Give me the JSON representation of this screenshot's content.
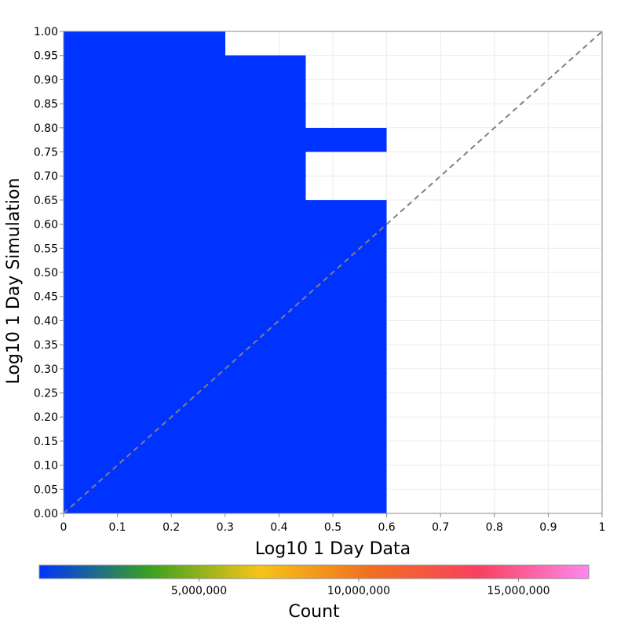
{
  "chart_data": {
    "type": "heatmap",
    "xlabel": "Log10 1 Day Data",
    "ylabel": "Log10 1 Day Simulation",
    "xlim": [
      0,
      1
    ],
    "ylim": [
      0,
      1
    ],
    "x_ticks": [
      "0",
      "0.1",
      "0.2",
      "0.3",
      "0.4",
      "0.5",
      "0.6",
      "0.7",
      "0.8",
      "0.9",
      "1"
    ],
    "x_tick_values": [
      0,
      0.1,
      0.2,
      0.3,
      0.4,
      0.5,
      0.6,
      0.7,
      0.8,
      0.9,
      1.0
    ],
    "y_ticks": [
      "0.00",
      "0.05",
      "0.10",
      "0.15",
      "0.20",
      "0.25",
      "0.30",
      "0.35",
      "0.40",
      "0.45",
      "0.50",
      "0.55",
      "0.60",
      "0.65",
      "0.70",
      "0.75",
      "0.80",
      "0.85",
      "0.90",
      "0.95",
      "1.00"
    ],
    "y_tick_values": [
      0,
      0.05,
      0.1,
      0.15,
      0.2,
      0.25,
      0.3,
      0.35,
      0.4,
      0.45,
      0.5,
      0.55,
      0.6,
      0.65,
      0.7,
      0.75,
      0.8,
      0.85,
      0.9,
      0.95,
      1.0
    ],
    "grid": true,
    "reference_line": "y = x (dashed)",
    "cells": [
      {
        "x0": 0.0,
        "x1": 0.3,
        "y0": 0.0,
        "y1": 1.0
      },
      {
        "x0": 0.3,
        "x1": 0.45,
        "y0": 0.0,
        "y1": 0.95
      },
      {
        "x0": 0.45,
        "x1": 0.6,
        "y0": 0.0,
        "y1": 0.65
      },
      {
        "x0": 0.45,
        "x1": 0.6,
        "y0": 0.75,
        "y1": 0.8
      }
    ],
    "cell_color": "#0033ff",
    "colorbar": {
      "label": "Count",
      "ticks": [
        "5,000,000",
        "10,000,000",
        "15,000,000"
      ],
      "tick_values": [
        5000000,
        10000000,
        15000000
      ],
      "range": [
        0,
        17200000
      ],
      "colors": [
        "#0033ff",
        "#3aa020",
        "#f5c518",
        "#f07020",
        "#f84060",
        "#ff88ee"
      ]
    }
  }
}
